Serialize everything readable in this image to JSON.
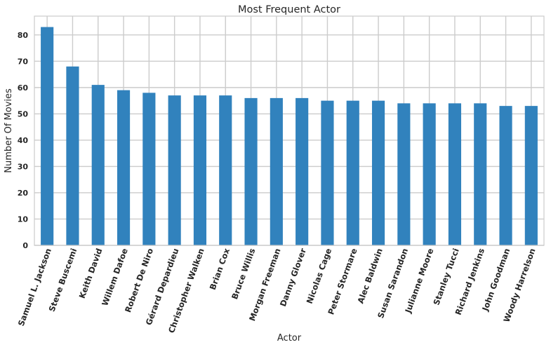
{
  "chart_data": {
    "type": "bar",
    "title": "Most Frequent Actor",
    "xlabel": "Actor",
    "ylabel": "Number Of Movies",
    "categories": [
      "Samuel L. Jackson",
      "Steve Buscemi",
      "Keith David",
      "Willem Dafoe",
      "Robert De Niro",
      "Gérard Depardieu",
      "Christopher Walken",
      "Brian Cox",
      "Bruce Willis",
      "Morgan Freeman",
      "Danny Glover",
      "Nicolas Cage",
      "Peter Stormare",
      "Alec Baldwin",
      "Susan Sarandon",
      "Julianne Moore",
      "Stanley Tucci",
      "Richard Jenkins",
      "John Goodman",
      "Woody Harrelson"
    ],
    "values": [
      83,
      68,
      61,
      59,
      58,
      57,
      57,
      57,
      56,
      56,
      56,
      55,
      55,
      55,
      54,
      54,
      54,
      54,
      53,
      53
    ],
    "ylim": [
      0,
      87.15
    ],
    "yticks": [
      "0",
      "10",
      "20",
      "30",
      "40",
      "50",
      "60",
      "70",
      "80"
    ],
    "grid": true,
    "bar_color": "#3182bd",
    "grid_color": "#cccccc"
  }
}
